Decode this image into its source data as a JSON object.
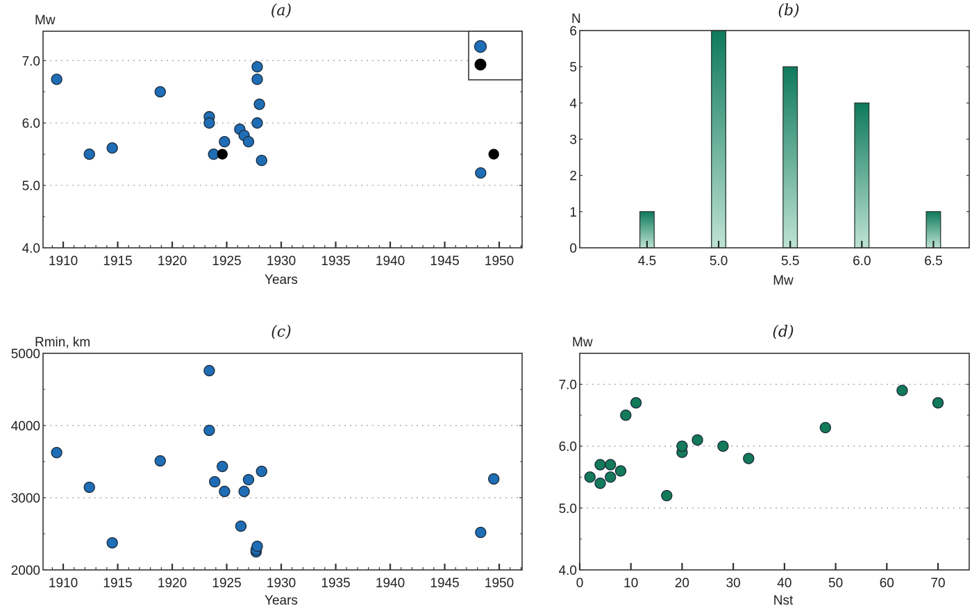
{
  "colors": {
    "blue_marker": "#1f6db5",
    "black_marker": "#000000",
    "green_marker": "#137a5a",
    "bar_top": "#0e7a5c",
    "bar_bottom": "#bfe3d3",
    "marker_edge": "#1a2a3a",
    "grid": "#9a9a9a"
  },
  "chart_data": [
    {
      "id": "a",
      "type": "scatter",
      "title": "(a)",
      "xlabel": "Years",
      "ylabel": "Mw",
      "xlim": [
        1908.15,
        1952.1
      ],
      "ylim": [
        4.0,
        7.47
      ],
      "xticks": [
        1910,
        1915,
        1920,
        1925,
        1930,
        1935,
        1940,
        1945,
        1950
      ],
      "xtick_labels": [
        "1910",
        "1915",
        "1920",
        "1925",
        "1930",
        "1935",
        "1940",
        "1945",
        "1950"
      ],
      "yticks": [
        4.0,
        5.0,
        6.0,
        7.0
      ],
      "ytick_labels": [
        "4.0",
        "5.0",
        "6.0",
        "7.0"
      ],
      "grid": "horizontal dotted at 5.0, 6.0, 7.0",
      "legend": {
        "placement": "top-right",
        "entries": [
          {
            "marker": "blue",
            "label": ""
          },
          {
            "marker": "black",
            "label": ""
          }
        ]
      },
      "series": [
        {
          "name": "blue",
          "x": [
            1909.4,
            1912.4,
            1914.5,
            1918.9,
            1923.4,
            1923.4,
            1923.8,
            1924.8,
            1926.2,
            1926.6,
            1927.0,
            1927.8,
            1927.8,
            1928.0,
            1927.8,
            1928.2,
            1948.3
          ],
          "y": [
            6.7,
            5.5,
            5.6,
            6.5,
            6.1,
            6.0,
            5.5,
            5.7,
            5.9,
            5.8,
            5.7,
            6.9,
            6.7,
            6.3,
            6.0,
            5.4,
            5.2
          ]
        },
        {
          "name": "black",
          "x": [
            1924.6,
            1949.5
          ],
          "y": [
            5.5,
            5.5
          ]
        }
      ]
    },
    {
      "id": "b",
      "type": "bar",
      "title": "(b)",
      "xlabel": "Mw",
      "ylabel": "N",
      "categories": [
        "4.5",
        "5.0",
        "5.5",
        "6.0",
        "6.5"
      ],
      "x": [
        4.5,
        5.0,
        5.5,
        6.0,
        6.5
      ],
      "values": [
        1,
        6,
        5,
        4,
        1
      ],
      "xlim": [
        4.03,
        6.75
      ],
      "ylim": [
        0,
        6
      ],
      "yticks": [
        0,
        1,
        2,
        3,
        4,
        5,
        6
      ],
      "ytick_labels": [
        "0",
        "1",
        "2",
        "3",
        "4",
        "5",
        "6"
      ],
      "xtick_labels": [
        "4.5",
        "5.0",
        "5.5",
        "6.0",
        "6.5"
      ],
      "bar_width": 0.1,
      "grid": "off"
    },
    {
      "id": "c",
      "type": "scatter",
      "title": "(c)",
      "xlabel": "Years",
      "ylabel": "Rmin, km",
      "xlim": [
        1908.15,
        1952.1
      ],
      "ylim": [
        2000,
        5000
      ],
      "xticks": [
        1910,
        1915,
        1920,
        1925,
        1930,
        1935,
        1940,
        1945,
        1950
      ],
      "xtick_labels": [
        "1910",
        "1915",
        "1920",
        "1925",
        "1930",
        "1935",
        "1940",
        "1945",
        "1950"
      ],
      "yticks": [
        2000,
        3000,
        4000,
        5000
      ],
      "ytick_labels": [
        "2000",
        "3000",
        "4000",
        "5000"
      ],
      "grid": "horizontal dotted at 3000, 4000",
      "series": [
        {
          "name": "blue",
          "x": [
            1909.4,
            1912.4,
            1914.5,
            1918.9,
            1923.4,
            1923.4,
            1923.9,
            1924.6,
            1924.8,
            1926.3,
            1926.6,
            1927.0,
            1928.2,
            1927.7,
            1927.7,
            1927.8,
            1948.3,
            1949.5
          ],
          "y": [
            3625,
            3144,
            2375,
            3510,
            4760,
            3933,
            3221,
            3433,
            3087,
            2606,
            3087,
            3250,
            3365,
            2250,
            2279,
            2327,
            2519,
            3260
          ]
        }
      ]
    },
    {
      "id": "d",
      "type": "scatter",
      "title": "(d)",
      "xlabel": "Nst",
      "ylabel": "Mw",
      "xlim": [
        0,
        76.1
      ],
      "ylim": [
        4.0,
        7.5
      ],
      "xticks": [
        0,
        10,
        20,
        30,
        40,
        50,
        60,
        70
      ],
      "xtick_labels": [
        "0",
        "10",
        "20",
        "30",
        "40",
        "50",
        "60",
        "70"
      ],
      "yticks": [
        4.0,
        5.0,
        6.0,
        7.0
      ],
      "ytick_labels": [
        "4.0",
        "5.0",
        "6.0",
        "7.0"
      ],
      "grid": "horizontal dotted at 5.0, 6.0, 7.0",
      "series": [
        {
          "name": "green",
          "x": [
            2,
            4,
            4,
            6,
            6,
            8,
            9,
            11,
            17,
            20,
            20,
            23,
            28,
            33,
            48,
            63,
            70
          ],
          "y": [
            5.5,
            5.7,
            5.4,
            5.7,
            5.5,
            5.6,
            6.5,
            6.7,
            5.2,
            5.9,
            6.0,
            6.1,
            6.0,
            5.8,
            6.3,
            6.9,
            6.7
          ]
        }
      ]
    }
  ]
}
